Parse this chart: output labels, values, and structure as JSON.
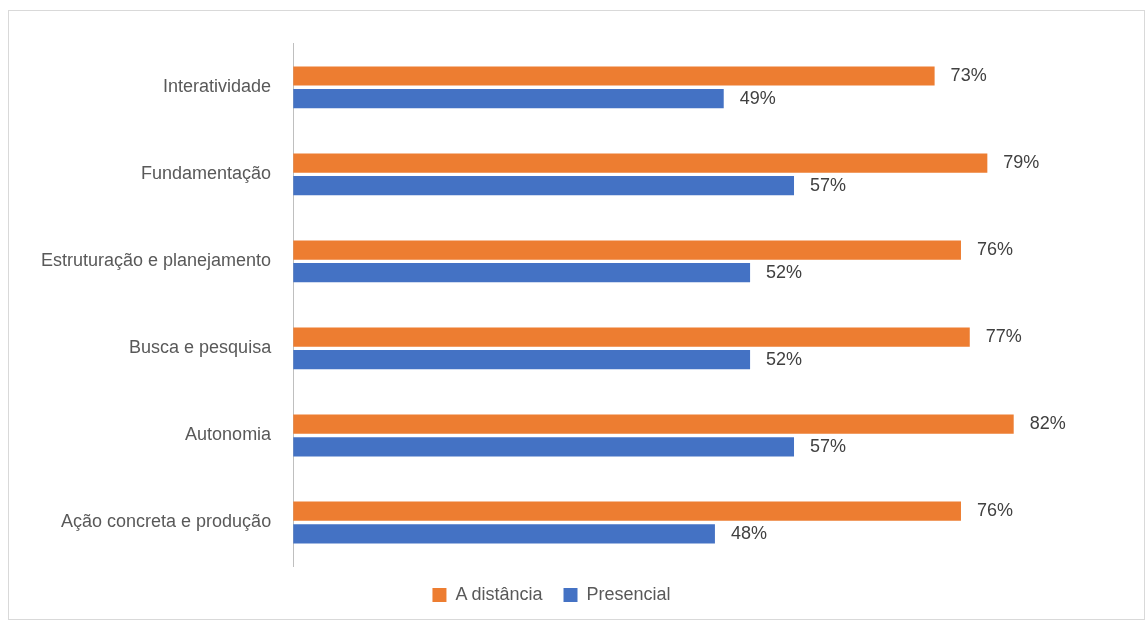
{
  "chart_data": {
    "type": "bar",
    "orientation": "horizontal",
    "categories": [
      "Interatividade",
      "Fundamentação",
      "Estruturação e planejamento",
      "Busca e pesquisa",
      "Autonomia",
      "Ação concreta e produção"
    ],
    "series": [
      {
        "name": "A distância",
        "color": "#ed7d31",
        "values": [
          73,
          79,
          76,
          77,
          82,
          76
        ],
        "value_labels": [
          "73%",
          "79%",
          "76%",
          "77%",
          "82%",
          "76%"
        ]
      },
      {
        "name": "Presencial",
        "color": "#4472c4",
        "values": [
          49,
          57,
          52,
          52,
          57,
          48
        ],
        "value_labels": [
          "49%",
          "57%",
          "52%",
          "52%",
          "57%",
          "48%"
        ]
      }
    ],
    "legend": "bottom",
    "grid": false,
    "tick_labels": "y"
  }
}
